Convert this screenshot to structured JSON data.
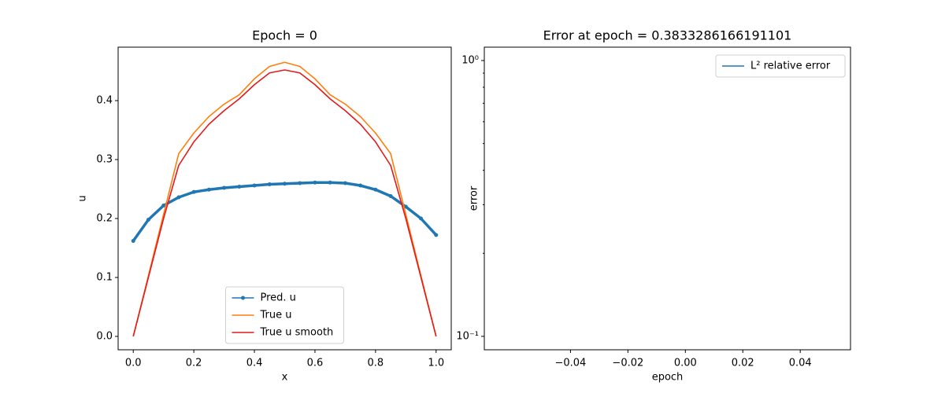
{
  "chart_data": [
    {
      "type": "line",
      "title": "Epoch = 0",
      "xlabel": "x",
      "ylabel": "u",
      "x": [
        0,
        0.05,
        0.1,
        0.15,
        0.2,
        0.25,
        0.3,
        0.35,
        0.4,
        0.45,
        0.5,
        0.55,
        0.6,
        0.65,
        0.7,
        0.75,
        0.8,
        0.85,
        0.9,
        0.95,
        1.0
      ],
      "series": [
        {
          "name": "Pred. u",
          "color": "#1f77b4",
          "marker": true,
          "values": [
            0.162,
            0.198,
            0.222,
            0.236,
            0.245,
            0.249,
            0.252,
            0.254,
            0.256,
            0.258,
            0.259,
            0.26,
            0.261,
            0.261,
            0.26,
            0.256,
            0.249,
            0.238,
            0.22,
            0.2,
            0.172
          ]
        },
        {
          "name": "True u",
          "color": "#ff7f0e",
          "marker": false,
          "values": [
            0,
            0.103,
            0.207,
            0.31,
            0.345,
            0.373,
            0.394,
            0.41,
            0.437,
            0.458,
            0.465,
            0.458,
            0.437,
            0.41,
            0.394,
            0.373,
            0.345,
            0.31,
            0.207,
            0.103,
            0
          ]
        },
        {
          "name": "True u smooth",
          "color": "#e41a1c",
          "marker": false,
          "values": [
            0,
            0.1,
            0.2,
            0.29,
            0.33,
            0.36,
            0.383,
            0.403,
            0.427,
            0.447,
            0.452,
            0.447,
            0.427,
            0.403,
            0.383,
            0.36,
            0.33,
            0.29,
            0.2,
            0.1,
            0
          ]
        }
      ],
      "xlim": [
        -0.05,
        1.05
      ],
      "xticks": [
        {
          "value": 0,
          "label": "0.0"
        },
        0.2,
        0.4,
        0.6,
        0.8,
        {
          "value": 1,
          "label": "1.0"
        }
      ],
      "ylim": [
        -0.0227,
        0.4907
      ],
      "yticks": [
        {
          "value": 0,
          "label": "0.0"
        },
        0.1,
        0.2,
        0.3,
        0.4
      ],
      "legend": "lower center",
      "yscale": "linear"
    },
    {
      "type": "line",
      "title": "Error at epoch = 0.3833286166191101",
      "xlabel": "epoch",
      "ylabel": "error",
      "x": [],
      "series": [
        {
          "name": "L² relative error",
          "color": "#1f77b4",
          "marker": false,
          "values": []
        }
      ],
      "xlim": [
        -0.07,
        0.0575
      ],
      "xticks": [
        {
          "value": -0.04,
          "label": "−0.04"
        },
        {
          "value": -0.02,
          "label": "−0.02"
        },
        {
          "value": 0,
          "label": "0.00"
        },
        0.02,
        0.04
      ],
      "ylim": [
        0.0894,
        1.118
      ],
      "yticks": [
        {
          "value": 0.1,
          "label": "10⁻¹"
        },
        {
          "value": 1,
          "label": "10⁰"
        }
      ],
      "yminorticks": [
        0.2,
        0.3,
        0.4,
        0.5,
        0.6,
        0.7,
        0.8,
        0.9
      ],
      "legend": "upper right",
      "yscale": "log"
    }
  ]
}
